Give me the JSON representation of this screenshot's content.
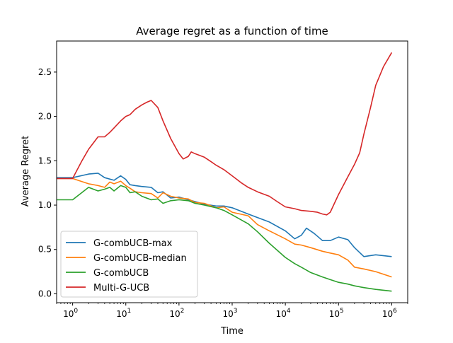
{
  "chart_data": {
    "type": "line",
    "title": "Average regret as a function of time",
    "xlabel": "Time",
    "ylabel": "Average Regret",
    "xscale": "log",
    "xlim": [
      0.5,
      2000000
    ],
    "ylim": [
      -0.1,
      2.85
    ],
    "xticks": [
      {
        "value": 1,
        "base": "10",
        "exp": "0"
      },
      {
        "value": 10,
        "base": "10",
        "exp": "1"
      },
      {
        "value": 100,
        "base": "10",
        "exp": "2"
      },
      {
        "value": 1000,
        "base": "10",
        "exp": "3"
      },
      {
        "value": 10000,
        "base": "10",
        "exp": "4"
      },
      {
        "value": 100000,
        "base": "10",
        "exp": "5"
      },
      {
        "value": 1000000,
        "base": "10",
        "exp": "6"
      }
    ],
    "yticks": [
      {
        "value": 0.0,
        "label": "0.0"
      },
      {
        "value": 0.5,
        "label": "0.5"
      },
      {
        "value": 1.0,
        "label": "1.0"
      },
      {
        "value": 1.5,
        "label": "1.5"
      },
      {
        "value": 2.0,
        "label": "2.0"
      },
      {
        "value": 2.5,
        "label": "2.5"
      }
    ],
    "grid": false,
    "legend_position": "lower-left",
    "series": [
      {
        "name": "G-combUCB-max",
        "color": "#1f77b4",
        "x": [
          0.5,
          1,
          2,
          3,
          4,
          6,
          8,
          10,
          12,
          15,
          20,
          30,
          40,
          50,
          70,
          100,
          150,
          200,
          300,
          500,
          700,
          1000,
          2000,
          3000,
          5000,
          10000,
          15000,
          20000,
          25000,
          35000,
          50000,
          70000,
          100000,
          150000,
          200000,
          300000,
          500000,
          1000000
        ],
        "y": [
          1.31,
          1.31,
          1.35,
          1.36,
          1.31,
          1.28,
          1.33,
          1.29,
          1.23,
          1.22,
          1.21,
          1.2,
          1.14,
          1.15,
          1.08,
          1.09,
          1.06,
          1.04,
          1.01,
          0.99,
          0.99,
          0.97,
          0.9,
          0.86,
          0.81,
          0.71,
          0.62,
          0.66,
          0.74,
          0.68,
          0.6,
          0.6,
          0.64,
          0.61,
          0.52,
          0.42,
          0.44,
          0.42
        ]
      },
      {
        "name": "G-combUCB-median",
        "color": "#ff7f0e",
        "x": [
          0.5,
          1,
          2,
          3,
          4,
          5,
          6,
          8,
          10,
          12,
          15,
          20,
          30,
          40,
          50,
          70,
          100,
          150,
          200,
          300,
          500,
          700,
          1000,
          2000,
          3000,
          5000,
          10000,
          15000,
          20000,
          30000,
          50000,
          70000,
          100000,
          150000,
          200000,
          300000,
          500000,
          1000000
        ],
        "y": [
          1.3,
          1.3,
          1.24,
          1.22,
          1.2,
          1.26,
          1.24,
          1.27,
          1.22,
          1.19,
          1.15,
          1.14,
          1.13,
          1.08,
          1.14,
          1.1,
          1.08,
          1.07,
          1.03,
          1.02,
          0.97,
          0.98,
          0.92,
          0.88,
          0.78,
          0.71,
          0.62,
          0.56,
          0.55,
          0.52,
          0.48,
          0.46,
          0.44,
          0.38,
          0.3,
          0.28,
          0.25,
          0.19
        ]
      },
      {
        "name": "G-combUCB",
        "color": "#2ca02c",
        "x": [
          0.5,
          1,
          2,
          3,
          4,
          5,
          6,
          8,
          10,
          12,
          15,
          20,
          30,
          40,
          50,
          70,
          100,
          150,
          200,
          300,
          500,
          700,
          1000,
          2000,
          3000,
          5000,
          10000,
          15000,
          20000,
          30000,
          50000,
          70000,
          100000,
          150000,
          200000,
          300000,
          500000,
          1000000
        ],
        "y": [
          1.06,
          1.06,
          1.2,
          1.16,
          1.18,
          1.2,
          1.16,
          1.22,
          1.2,
          1.14,
          1.15,
          1.1,
          1.06,
          1.07,
          1.02,
          1.05,
          1.06,
          1.05,
          1.02,
          1.0,
          0.97,
          0.94,
          0.89,
          0.79,
          0.7,
          0.57,
          0.41,
          0.34,
          0.3,
          0.24,
          0.19,
          0.16,
          0.13,
          0.11,
          0.09,
          0.07,
          0.05,
          0.03
        ]
      },
      {
        "name": "Multi-G-UCB",
        "color": "#d62728",
        "x": [
          0.5,
          1,
          1.5,
          2,
          3,
          4,
          5,
          6,
          8,
          10,
          12,
          15,
          20,
          25,
          30,
          40,
          50,
          70,
          100,
          120,
          150,
          170,
          200,
          300,
          400,
          500,
          700,
          1000,
          1500,
          2000,
          3000,
          5000,
          7000,
          10000,
          15000,
          20000,
          30000,
          40000,
          50000,
          60000,
          70000,
          100000,
          150000,
          200000,
          250000,
          300000,
          400000,
          500000,
          700000,
          1000000
        ],
        "y": [
          1.3,
          1.3,
          1.5,
          1.63,
          1.77,
          1.77,
          1.82,
          1.87,
          1.95,
          2.0,
          2.02,
          2.08,
          2.13,
          2.16,
          2.18,
          2.1,
          1.95,
          1.75,
          1.58,
          1.52,
          1.55,
          1.6,
          1.58,
          1.54,
          1.49,
          1.45,
          1.4,
          1.33,
          1.25,
          1.2,
          1.15,
          1.1,
          1.04,
          0.98,
          0.96,
          0.94,
          0.93,
          0.92,
          0.9,
          0.89,
          0.92,
          1.12,
          1.32,
          1.46,
          1.59,
          1.8,
          2.1,
          2.35,
          2.56,
          2.72
        ]
      }
    ]
  }
}
